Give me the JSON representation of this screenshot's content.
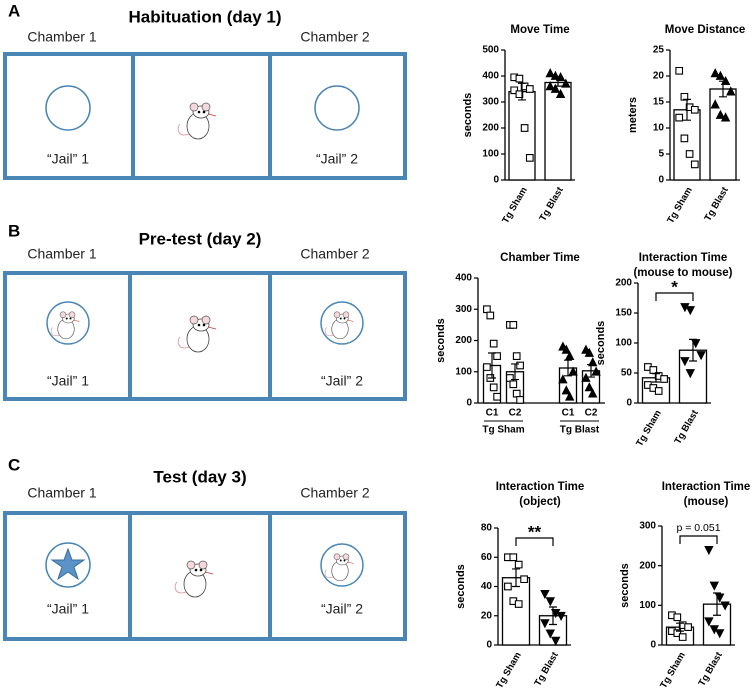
{
  "panels": [
    {
      "letter": "A",
      "title": "Habituation (day 1)",
      "chamber_labels": [
        "Chamber 1",
        "Chamber 2"
      ],
      "jail_labels": [
        "“Jail” 1",
        "“Jail” 2"
      ]
    },
    {
      "letter": "B",
      "title": "Pre-test (day 2)",
      "chamber_labels": [
        "Chamber 1",
        "Chamber 2"
      ],
      "jail_labels": [
        "“Jail” 1",
        "“Jail” 2"
      ]
    },
    {
      "letter": "C",
      "title": "Test (day 3)",
      "chamber_labels": [
        "Chamber 1",
        "Chamber 2"
      ],
      "jail_labels": [
        "“Jail” 1",
        "“Jail” 2"
      ]
    }
  ],
  "chart_data": [
    {
      "type": "bar",
      "title": [
        "Move Time"
      ],
      "y_label": "seconds",
      "categories": [
        "Tg Sham",
        "Tg Blast"
      ],
      "values": [
        340,
        375
      ],
      "errors": [
        32,
        14
      ],
      "points": [
        [
          395,
          390,
          360,
          350,
          345,
          330,
          200,
          85
        ],
        [
          410,
          400,
          395,
          370,
          360,
          350,
          330
        ]
      ],
      "markers": [
        "square",
        "triangle-up"
      ],
      "ylim": [
        0,
        500
      ],
      "yticks": [
        0,
        100,
        200,
        300,
        400,
        500
      ]
    },
    {
      "type": "bar",
      "title": [
        "Move Distance"
      ],
      "y_label": "meters",
      "categories": [
        "Tg Sham",
        "Tg Blast"
      ],
      "values": [
        13.5,
        17.5
      ],
      "errors": [
        2,
        1.5
      ],
      "points": [
        [
          21,
          16,
          14,
          13.5,
          12,
          8,
          5,
          3
        ],
        [
          20.5,
          20,
          19,
          17,
          14.5,
          12.5,
          12
        ]
      ],
      "markers": [
        "square",
        "triangle-up"
      ],
      "ylim": [
        0,
        25
      ],
      "yticks": [
        0,
        5,
        10,
        15,
        20,
        25
      ]
    },
    {
      "type": "bar",
      "title": [
        "Chamber Time"
      ],
      "y_label": "seconds",
      "categories": [
        "C1",
        "C2",
        "C1",
        "C2"
      ],
      "groups": [
        "Tg Sham",
        "Tg Blast"
      ],
      "values": [
        120,
        100,
        112,
        103
      ],
      "errors": [
        40,
        25,
        25,
        20
      ],
      "points": [
        [
          300,
          280,
          190,
          150,
          115,
          80,
          50,
          20
        ],
        [
          250,
          250,
          150,
          120,
          80,
          60,
          30,
          10
        ],
        [
          180,
          170,
          150,
          100,
          75,
          40,
          20
        ],
        [
          170,
          160,
          130,
          100,
          80,
          50,
          30
        ]
      ],
      "markers": [
        "square",
        "square",
        "triangle-up",
        "triangle-up"
      ],
      "ylim": [
        0,
        400
      ],
      "yticks": [
        0,
        100,
        200,
        300,
        400
      ]
    },
    {
      "type": "bar",
      "title": [
        "Interaction Time",
        "(mouse to mouse)"
      ],
      "y_label": "seconds",
      "categories": [
        "Tg Sham",
        "Tg Blast"
      ],
      "values": [
        42,
        88
      ],
      "errors": [
        7,
        18
      ],
      "points": [
        [
          60,
          55,
          45,
          40,
          30,
          25,
          20
        ],
        [
          160,
          155,
          100,
          80,
          70,
          50
        ]
      ],
      "markers": [
        "square",
        "triangle-down"
      ],
      "ylim": [
        0,
        200
      ],
      "yticks": [
        0,
        50,
        100,
        150,
        200
      ],
      "significance": "*"
    },
    {
      "type": "bar",
      "title": [
        "Interaction Time",
        "(object)"
      ],
      "y_label": "seconds",
      "categories": [
        "Tg Sham",
        "Tg Blast"
      ],
      "values": [
        46,
        20
      ],
      "errors": [
        6,
        6
      ],
      "points": [
        [
          60,
          60,
          55,
          45,
          40,
          30,
          28
        ],
        [
          35,
          30,
          22,
          20,
          15,
          8,
          3
        ]
      ],
      "markers": [
        "square",
        "triangle-down"
      ],
      "ylim": [
        0,
        80
      ],
      "yticks": [
        0,
        20,
        40,
        60,
        80
      ],
      "significance": "**"
    },
    {
      "type": "bar",
      "title": [
        "Interaction Time",
        "(mouse)"
      ],
      "y_label": "seconds",
      "categories": [
        "Tg Sham",
        "Tg Blast"
      ],
      "values": [
        45,
        103
      ],
      "errors": [
        10,
        28
      ],
      "points": [
        [
          75,
          70,
          50,
          45,
          35,
          30,
          20
        ],
        [
          240,
          150,
          120,
          100,
          60,
          40,
          30
        ]
      ],
      "markers": [
        "square",
        "triangle-down"
      ],
      "ylim": [
        0,
        300
      ],
      "yticks": [
        0,
        100,
        200,
        300
      ],
      "significance": "p = 0.051"
    }
  ]
}
